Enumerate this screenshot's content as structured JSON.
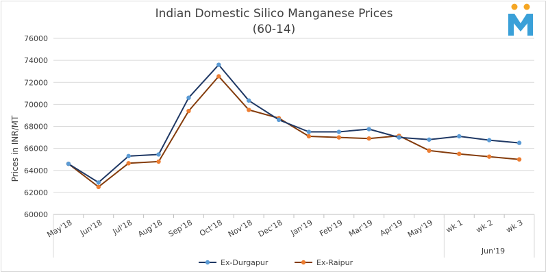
{
  "chart_data": {
    "type": "line",
    "title": "Indian Domestic Silico Manganese Prices",
    "subtitle": "(60-14)",
    "ylabel": "Prices in INR/MT",
    "xlabel": "",
    "ylim": [
      60000,
      76000
    ],
    "yticks": [
      60000,
      62000,
      64000,
      66000,
      68000,
      70000,
      72000,
      74000,
      76000
    ],
    "categories": [
      "May'18",
      "Jun'18",
      "Jul'18",
      "Aug'18",
      "Sep'18",
      "Oct'18",
      "Nov'18",
      "Dec'18",
      "Jan'19",
      "Feb'19",
      "Mar'19",
      "Apr'19",
      "May'19",
      "wk 1",
      "wk 2",
      "wk 3"
    ],
    "group_label": "Jun'19",
    "grid": true,
    "legend": "bottom",
    "series": [
      {
        "name": "Ex-Durgapur",
        "color": "#1f3864",
        "marker_color": "#5b9bd5",
        "values": [
          64600,
          62900,
          65300,
          65450,
          70600,
          73600,
          70350,
          68600,
          67500,
          67500,
          67750,
          67000,
          66800,
          67100,
          66750,
          66500
        ]
      },
      {
        "name": "Ex-Raipur",
        "color": "#843c0c",
        "marker_color": "#ed7d31",
        "values": [
          64600,
          62500,
          64650,
          64800,
          69400,
          72550,
          69500,
          68750,
          67100,
          67000,
          66900,
          67150,
          65800,
          65500,
          65250,
          65000
        ]
      }
    ]
  },
  "logo": {
    "name": "M-logo",
    "colors": [
      "#f5a623",
      "#3aa0d8"
    ]
  }
}
